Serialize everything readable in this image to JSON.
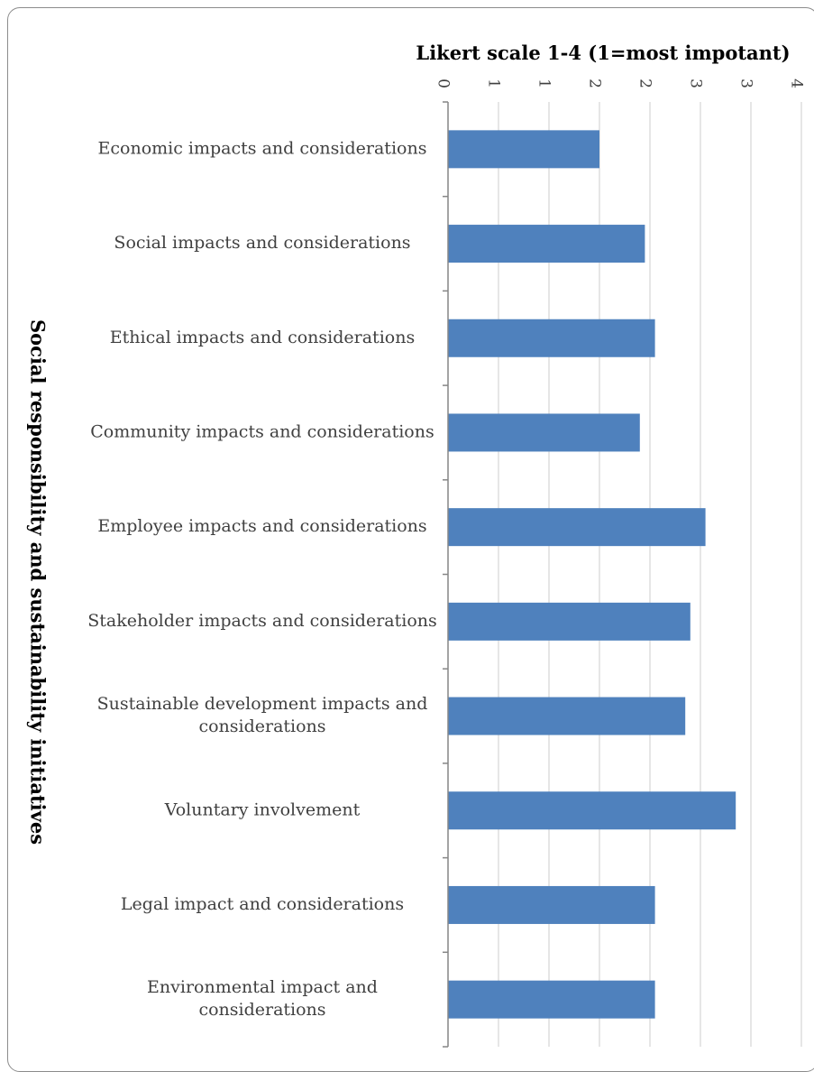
{
  "chart_data": {
    "type": "bar",
    "orientation": "horizontal",
    "x_axis_title": "Likert scale 1-4 (1=most impotant)",
    "y_axis_title": "Social responsibility and sustainability initiatives",
    "categories": [
      [
        "Economic impacts and considerations"
      ],
      [
        "Social impacts and considerations"
      ],
      [
        "Ethical impacts and considerations"
      ],
      [
        "Community impacts and considerations"
      ],
      [
        "Employee impacts and considerations"
      ],
      [
        "Stakeholder impacts and considerations"
      ],
      [
        "Sustainable development impacts and",
        "considerations"
      ],
      [
        "Voluntary involvement"
      ],
      [
        "Legal impact and considerations"
      ],
      [
        "Environmental impact and",
        "considerations"
      ]
    ],
    "values": [
      1.5,
      1.95,
      2.05,
      1.9,
      2.55,
      2.4,
      2.35,
      2.85,
      2.05,
      2.05
    ],
    "x_tick_labels": [
      "0",
      "1",
      "1",
      "2",
      "2",
      "3",
      "3",
      "4"
    ],
    "xlim": [
      0,
      3.5
    ],
    "x_tick_step": 0.5,
    "grid": true,
    "legend": "none",
    "bar_color": "#4f81bd",
    "grid_color": "#d9d9d9",
    "axis_color": "#868686"
  }
}
